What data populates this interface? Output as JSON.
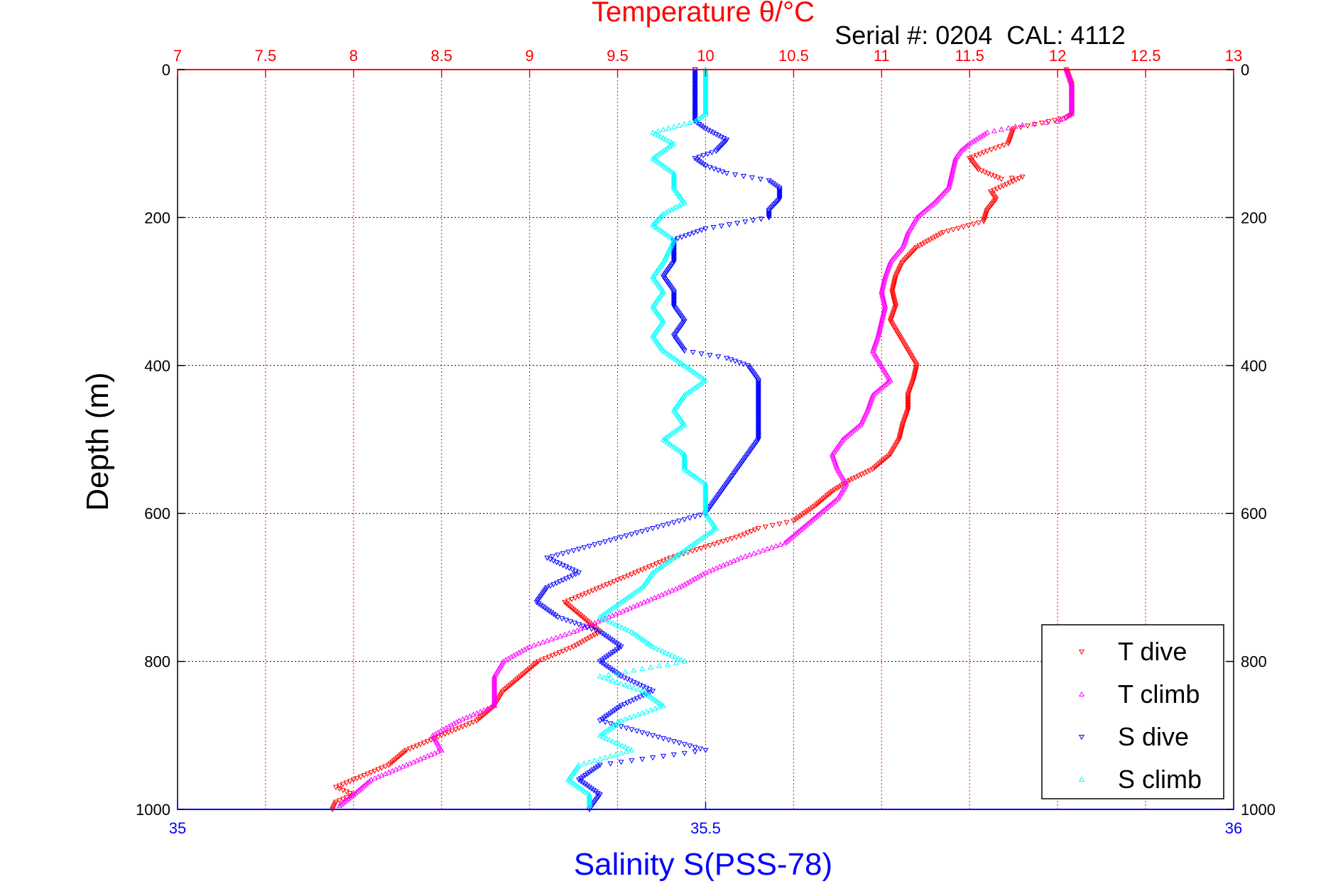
{
  "chart_data": {
    "type": "scatter",
    "title": "Temperature θ/°C",
    "annotation": "Serial #: 0204  CAL: 4112",
    "xlabel_top": "Temperature θ/°C",
    "xlabel_bottom": "Salinity S(PSS-78)",
    "ylabel": "Depth (m)",
    "temperature_axis": {
      "range": [
        7,
        13
      ],
      "ticks": [
        "7",
        "7.5",
        "8",
        "8.5",
        "9",
        "9.5",
        "10",
        "10.5",
        "11",
        "11.5",
        "12",
        "12.5",
        "13"
      ],
      "color": "#ff0000"
    },
    "salinity_axis": {
      "range": [
        35,
        36
      ],
      "ticks": [
        "35",
        "35.5",
        "36"
      ],
      "color": "#0000ff"
    },
    "depth_axis": {
      "range": [
        0,
        1000
      ],
      "reversed": true,
      "ticks": [
        "0",
        "200",
        "400",
        "600",
        "800",
        "1000"
      ]
    },
    "grid": true,
    "legend_position": "bottom-right",
    "series": [
      {
        "name": "T dive",
        "color": "#ff0000",
        "marker": "triangle-down",
        "axis": "temperature",
        "points": [
          [
            12.05,
            0
          ],
          [
            12.08,
            20
          ],
          [
            12.08,
            40
          ],
          [
            12.08,
            60
          ],
          [
            12.05,
            65
          ],
          [
            11.95,
            70
          ],
          [
            11.75,
            80
          ],
          [
            11.72,
            100
          ],
          [
            11.6,
            110
          ],
          [
            11.5,
            120
          ],
          [
            11.55,
            135
          ],
          [
            11.68,
            148
          ],
          [
            11.8,
            145
          ],
          [
            11.62,
            165
          ],
          [
            11.65,
            175
          ],
          [
            11.6,
            190
          ],
          [
            11.58,
            205
          ],
          [
            11.35,
            220
          ],
          [
            11.2,
            240
          ],
          [
            11.12,
            260
          ],
          [
            11.08,
            280
          ],
          [
            11.06,
            300
          ],
          [
            11.08,
            320
          ],
          [
            11.05,
            340
          ],
          [
            11.1,
            360
          ],
          [
            11.15,
            380
          ],
          [
            11.2,
            400
          ],
          [
            11.18,
            420
          ],
          [
            11.15,
            440
          ],
          [
            11.15,
            460
          ],
          [
            11.12,
            480
          ],
          [
            11.1,
            500
          ],
          [
            11.05,
            520
          ],
          [
            10.95,
            540
          ],
          [
            10.82,
            555
          ],
          [
            10.72,
            570
          ],
          [
            10.62,
            590
          ],
          [
            10.5,
            610
          ],
          [
            10.3,
            620
          ],
          [
            10.2,
            630
          ],
          [
            10.0,
            645
          ],
          [
            9.8,
            660
          ],
          [
            9.6,
            680
          ],
          [
            9.4,
            700
          ],
          [
            9.2,
            720
          ],
          [
            9.3,
            740
          ],
          [
            9.4,
            760
          ],
          [
            9.25,
            780
          ],
          [
            9.05,
            800
          ],
          [
            8.95,
            820
          ],
          [
            8.85,
            840
          ],
          [
            8.8,
            860
          ],
          [
            8.7,
            880
          ],
          [
            8.5,
            900
          ],
          [
            8.3,
            920
          ],
          [
            8.2,
            940
          ],
          [
            8.0,
            960
          ],
          [
            7.9,
            970
          ],
          [
            8.0,
            980
          ],
          [
            7.9,
            990
          ],
          [
            7.88,
            1000
          ]
        ]
      },
      {
        "name": "T climb",
        "color": "#ff00ff",
        "marker": "triangle-up",
        "axis": "temperature",
        "points": [
          [
            12.05,
            0
          ],
          [
            12.08,
            20
          ],
          [
            12.08,
            40
          ],
          [
            12.08,
            60
          ],
          [
            12.0,
            70
          ],
          [
            11.8,
            75
          ],
          [
            11.6,
            85
          ],
          [
            11.5,
            100
          ],
          [
            11.45,
            110
          ],
          [
            11.42,
            120
          ],
          [
            11.4,
            140
          ],
          [
            11.38,
            160
          ],
          [
            11.3,
            180
          ],
          [
            11.25,
            190
          ],
          [
            11.2,
            200
          ],
          [
            11.15,
            220
          ],
          [
            11.12,
            240
          ],
          [
            11.05,
            260
          ],
          [
            11.02,
            280
          ],
          [
            11.0,
            300
          ],
          [
            11.02,
            320
          ],
          [
            11.0,
            340
          ],
          [
            10.98,
            360
          ],
          [
            10.95,
            380
          ],
          [
            11.0,
            400
          ],
          [
            11.05,
            420
          ],
          [
            10.95,
            440
          ],
          [
            10.92,
            460
          ],
          [
            10.88,
            480
          ],
          [
            10.78,
            500
          ],
          [
            10.72,
            520
          ],
          [
            10.75,
            540
          ],
          [
            10.8,
            560
          ],
          [
            10.75,
            580
          ],
          [
            10.65,
            600
          ],
          [
            10.55,
            620
          ],
          [
            10.45,
            640
          ],
          [
            10.2,
            660
          ],
          [
            10.0,
            680
          ],
          [
            9.85,
            700
          ],
          [
            9.65,
            720
          ],
          [
            9.45,
            740
          ],
          [
            9.25,
            760
          ],
          [
            9.0,
            780
          ],
          [
            8.85,
            800
          ],
          [
            8.8,
            820
          ],
          [
            8.8,
            840
          ],
          [
            8.8,
            860
          ],
          [
            8.6,
            880
          ],
          [
            8.45,
            900
          ],
          [
            8.5,
            920
          ],
          [
            8.3,
            940
          ],
          [
            8.1,
            960
          ],
          [
            8.0,
            980
          ],
          [
            7.92,
            995
          ]
        ]
      },
      {
        "name": "S dive",
        "color": "#0000ff",
        "marker": "triangle-down",
        "axis": "salinity",
        "points": [
          [
            35.49,
            0
          ],
          [
            35.49,
            20
          ],
          [
            35.49,
            40
          ],
          [
            35.49,
            60
          ],
          [
            35.49,
            70
          ],
          [
            35.5,
            80
          ],
          [
            35.52,
            95
          ],
          [
            35.51,
            110
          ],
          [
            35.49,
            120
          ],
          [
            35.5,
            130
          ],
          [
            35.52,
            140
          ],
          [
            35.56,
            150
          ],
          [
            35.57,
            160
          ],
          [
            35.57,
            175
          ],
          [
            35.56,
            190
          ],
          [
            35.56,
            200
          ],
          [
            35.5,
            215
          ],
          [
            35.47,
            230
          ],
          [
            35.47,
            260
          ],
          [
            35.46,
            280
          ],
          [
            35.47,
            300
          ],
          [
            35.47,
            320
          ],
          [
            35.48,
            340
          ],
          [
            35.47,
            360
          ],
          [
            35.48,
            380
          ],
          [
            35.52,
            390
          ],
          [
            35.54,
            400
          ],
          [
            35.55,
            420
          ],
          [
            35.55,
            440
          ],
          [
            35.55,
            460
          ],
          [
            35.55,
            480
          ],
          [
            35.55,
            500
          ],
          [
            35.54,
            520
          ],
          [
            35.53,
            540
          ],
          [
            35.52,
            560
          ],
          [
            35.51,
            580
          ],
          [
            35.5,
            600
          ],
          [
            35.45,
            620
          ],
          [
            35.4,
            640
          ],
          [
            35.35,
            660
          ],
          [
            35.38,
            680
          ],
          [
            35.35,
            700
          ],
          [
            35.34,
            720
          ],
          [
            35.36,
            740
          ],
          [
            35.4,
            760
          ],
          [
            35.42,
            780
          ],
          [
            35.4,
            800
          ],
          [
            35.42,
            820
          ],
          [
            35.45,
            840
          ],
          [
            35.42,
            860
          ],
          [
            35.4,
            880
          ],
          [
            35.45,
            900
          ],
          [
            35.5,
            920
          ],
          [
            35.4,
            940
          ],
          [
            35.38,
            960
          ],
          [
            35.4,
            980
          ],
          [
            35.39,
            1000
          ]
        ]
      },
      {
        "name": "S climb",
        "color": "#00ffff",
        "marker": "triangle-up",
        "axis": "salinity",
        "points": [
          [
            35.5,
            0
          ],
          [
            35.5,
            20
          ],
          [
            35.5,
            40
          ],
          [
            35.5,
            60
          ],
          [
            35.49,
            70
          ],
          [
            35.45,
            85
          ],
          [
            35.47,
            100
          ],
          [
            35.45,
            120
          ],
          [
            35.47,
            140
          ],
          [
            35.47,
            160
          ],
          [
            35.48,
            180
          ],
          [
            35.46,
            195
          ],
          [
            35.45,
            210
          ],
          [
            35.47,
            230
          ],
          [
            35.46,
            260
          ],
          [
            35.45,
            280
          ],
          [
            35.46,
            300
          ],
          [
            35.45,
            320
          ],
          [
            35.46,
            340
          ],
          [
            35.45,
            360
          ],
          [
            35.46,
            380
          ],
          [
            35.48,
            400
          ],
          [
            35.5,
            420
          ],
          [
            35.48,
            440
          ],
          [
            35.47,
            460
          ],
          [
            35.48,
            480
          ],
          [
            35.46,
            500
          ],
          [
            35.48,
            520
          ],
          [
            35.48,
            540
          ],
          [
            35.5,
            560
          ],
          [
            35.5,
            580
          ],
          [
            35.5,
            600
          ],
          [
            35.51,
            620
          ],
          [
            35.49,
            640
          ],
          [
            35.47,
            660
          ],
          [
            35.45,
            680
          ],
          [
            35.44,
            700
          ],
          [
            35.42,
            720
          ],
          [
            35.4,
            740
          ],
          [
            35.43,
            760
          ],
          [
            35.45,
            780
          ],
          [
            35.48,
            800
          ],
          [
            35.4,
            820
          ],
          [
            35.44,
            840
          ],
          [
            35.46,
            860
          ],
          [
            35.42,
            880
          ],
          [
            35.4,
            900
          ],
          [
            35.43,
            920
          ],
          [
            35.38,
            940
          ],
          [
            35.37,
            960
          ],
          [
            35.39,
            980
          ],
          [
            35.39,
            995
          ]
        ]
      }
    ]
  }
}
